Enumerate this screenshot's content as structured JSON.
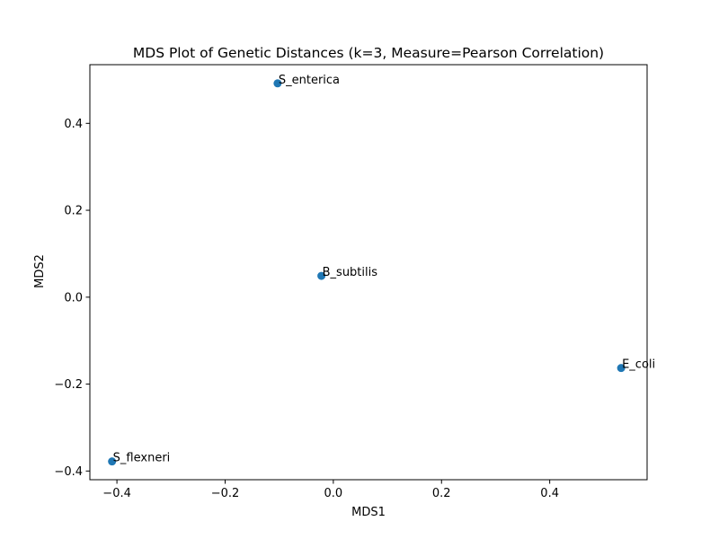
{
  "chart_data": {
    "type": "scatter",
    "title": "MDS Plot of Genetic Distances (k=3, Measure=Pearson Correlation)",
    "xlabel": "MDS1",
    "ylabel": "MDS2",
    "xlim": [
      -0.45,
      0.58
    ],
    "ylim": [
      -0.42,
      0.535
    ],
    "xticks": [
      -0.4,
      -0.2,
      0.0,
      0.2,
      0.4
    ],
    "xtick_labels": [
      "−0.4",
      "−0.2",
      "0.0",
      "0.2",
      "0.4"
    ],
    "yticks": [
      -0.4,
      -0.2,
      0.0,
      0.2,
      0.4
    ],
    "ytick_labels": [
      "−0.4",
      "−0.2",
      "0.0",
      "0.2",
      "0.4"
    ],
    "grid": false,
    "marker_color": "#1f77b4",
    "points": [
      {
        "label": "S_enterica",
        "x": -0.103,
        "y": 0.492
      },
      {
        "label": "B_subtilis",
        "x": -0.022,
        "y": 0.049
      },
      {
        "label": "E_coli",
        "x": 0.532,
        "y": -0.163
      },
      {
        "label": "S_flexneri",
        "x": -0.409,
        "y": -0.378
      }
    ]
  }
}
